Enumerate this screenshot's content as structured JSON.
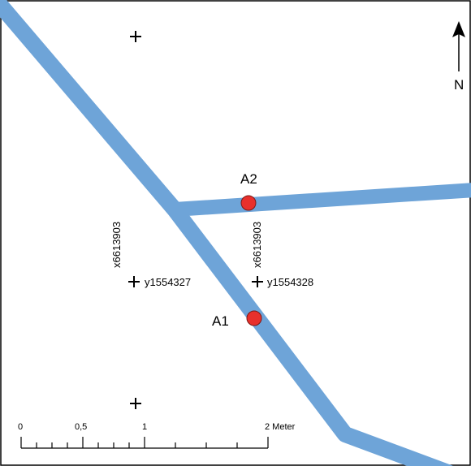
{
  "points": [
    {
      "label": "A1",
      "color": "#e8302c"
    },
    {
      "label": "A2",
      "color": "#e8302c"
    }
  ],
  "grid_labels": {
    "left_x": "x6613903",
    "left_y": "y1554327",
    "right_x": "x6613903",
    "right_y": "y1554328"
  },
  "north_arrow": {
    "label": "N"
  },
  "scale_bar": {
    "ticks": [
      "0",
      "0,5",
      "1",
      "2 Meter"
    ]
  },
  "colors": {
    "road": "#6ea4d8",
    "point": "#e8302c",
    "frame": "#000000"
  }
}
